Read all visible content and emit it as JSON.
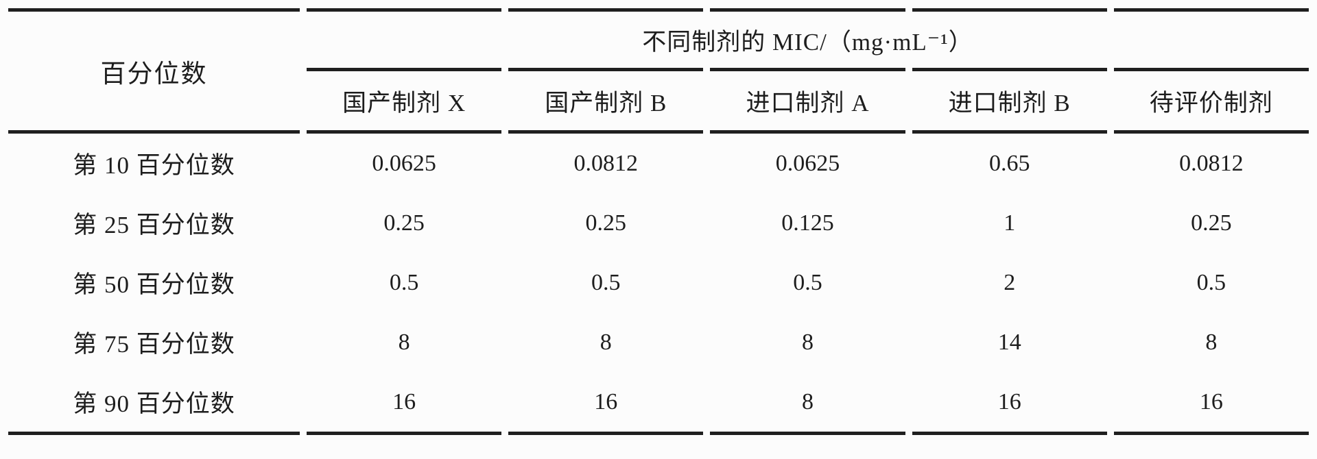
{
  "page": {
    "background": "#fcfcfc",
    "text_color": "#1d1d1d",
    "rule_color": "#1f1f1f"
  },
  "table": {
    "corner_header": "百分位数",
    "span_header": "不同制剂的 MIC/（mg·mL⁻¹）",
    "column_headers": [
      "国产制剂 X",
      "国产制剂 B",
      "进口制剂 A",
      "进口制剂 B",
      "待评价制剂"
    ],
    "rows": [
      {
        "label": "第 10 百分位数",
        "values": [
          "0.0625",
          "0.0812",
          "0.0625",
          "0.65",
          "0.0812"
        ]
      },
      {
        "label": "第 25 百分位数",
        "values": [
          "0.25",
          "0.25",
          "0.125",
          "1",
          "0.25"
        ]
      },
      {
        "label": "第 50 百分位数",
        "values": [
          "0.5",
          "0.5",
          "0.5",
          "2",
          "0.5"
        ]
      },
      {
        "label": "第 75 百分位数",
        "values": [
          "8",
          "8",
          "8",
          "14",
          "8"
        ]
      },
      {
        "label": "第 90 百分位数",
        "values": [
          "16",
          "16",
          "8",
          "16",
          "16"
        ]
      }
    ]
  },
  "chart_data": {
    "type": "table",
    "title": "不同制剂的 MIC/（mg·mL⁻¹）",
    "row_header": "百分位数",
    "categories": [
      "国产制剂 X",
      "国产制剂 B",
      "进口制剂 A",
      "进口制剂 B",
      "待评价制剂"
    ],
    "series": [
      {
        "name": "第 10 百分位数",
        "values": [
          0.0625,
          0.0812,
          0.0625,
          0.65,
          0.0812
        ]
      },
      {
        "name": "第 25 百分位数",
        "values": [
          0.25,
          0.25,
          0.125,
          1,
          0.25
        ]
      },
      {
        "name": "第 50 百分位数",
        "values": [
          0.5,
          0.5,
          0.5,
          2,
          0.5
        ]
      },
      {
        "name": "第 75 百分位数",
        "values": [
          8,
          8,
          8,
          14,
          8
        ]
      },
      {
        "name": "第 90 百分位数",
        "values": [
          16,
          16,
          8,
          16,
          16
        ]
      }
    ]
  }
}
